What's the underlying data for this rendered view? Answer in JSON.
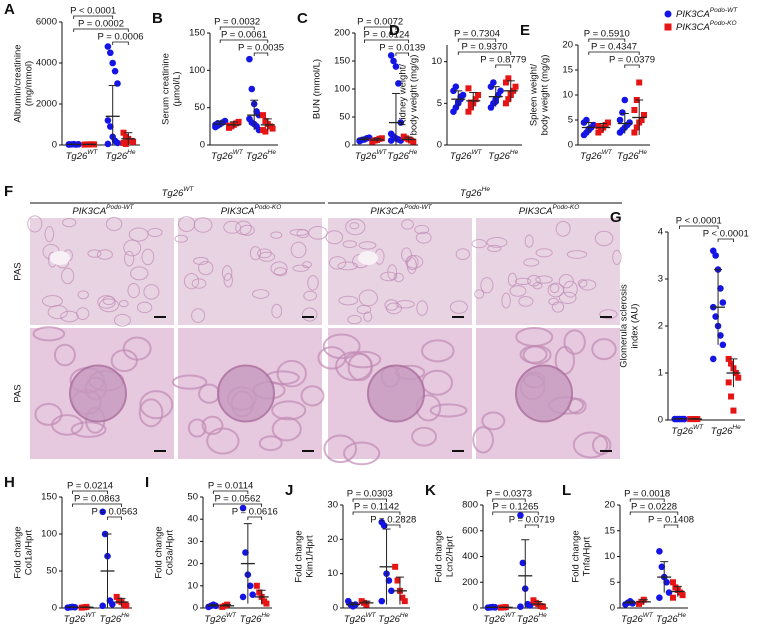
{
  "legend": [
    {
      "name": "PIK3CA",
      "sup": "Podo-WT",
      "color": "#1414e6"
    },
    {
      "name": "PIK3CA",
      "sup": "Podo-KO",
      "color": "#e61414"
    }
  ],
  "histology": {
    "panel": "F",
    "groups": [
      {
        "base": "Tg26",
        "sup": "WT"
      },
      {
        "base": "Tg26",
        "sup": "He"
      }
    ],
    "columns": [
      {
        "name": "PIK3CA",
        "sup": "Podo-WT"
      },
      {
        "name": "PIK3CA",
        "sup": "Podo-KO"
      },
      {
        "name": "PIK3CA",
        "sup": "Podo-WT"
      },
      {
        "name": "PIK3CA",
        "sup": "Podo-KO"
      }
    ],
    "rows": [
      "PAS",
      "PAS"
    ]
  },
  "chart_data": [
    {
      "type": "dot",
      "panel": "A",
      "ylabel": [
        "Albumin/creatinine",
        "(mg/mmol)"
      ],
      "ylim": [
        0,
        6000
      ],
      "yticks": [
        0,
        2000,
        4000,
        6000
      ],
      "categories": [
        {
          "base": "Tg26",
          "sup": "WT"
        },
        {
          "base": "Tg26",
          "sup": "He"
        }
      ],
      "pvalues": [
        "P < 0.0001",
        "P = 0.0002",
        "P = 0.0006"
      ],
      "series": [
        {
          "values": [
            30,
            1400
          ],
          "errors": [
            10,
            1500
          ],
          "points": [
            [
              20,
              30,
              40,
              25,
              35,
              30
            ],
            [
              4800,
              4500,
              4000,
              3600,
              3000,
              1200,
              900,
              400,
              200,
              100,
              50
            ]
          ]
        },
        {
          "values": [
            30,
            300
          ],
          "errors": [
            10,
            300
          ],
          "points": [
            [
              20,
              30,
              25,
              35,
              30
            ],
            [
              600,
              400,
              300,
              200,
              150,
              100,
              50
            ]
          ]
        }
      ]
    },
    {
      "type": "dot",
      "panel": "B",
      "ylabel": [
        "Serum creatinine",
        "(µmol/L)"
      ],
      "ylim": [
        0,
        150
      ],
      "yticks": [
        0,
        50,
        100,
        150
      ],
      "categories": [
        {
          "base": "Tg26",
          "sup": "WT"
        },
        {
          "base": "Tg26",
          "sup": "He"
        }
      ],
      "pvalues": [
        "P = 0.0032",
        "P = 0.0061",
        "P = 0.0035"
      ],
      "series": [
        {
          "values": [
            28,
            40
          ],
          "errors": [
            4,
            20
          ],
          "points": [
            [
              24,
              26,
              28,
              30,
              32,
              27,
              29
            ],
            [
              115,
              75,
              55,
              45,
              40,
              35,
              30,
              28,
              25,
              20
            ]
          ]
        },
        {
          "values": [
            27,
            27
          ],
          "errors": [
            4,
            8
          ],
          "points": [
            [
              23,
              25,
              27,
              29,
              31,
              26
            ],
            [
              40,
              32,
              28,
              25,
              22,
              20,
              18
            ]
          ]
        }
      ]
    },
    {
      "type": "dot",
      "panel": "C",
      "ylabel": [
        "BUN (mmol/L)"
      ],
      "ylim": [
        0,
        200
      ],
      "yticks": [
        0,
        50,
        100,
        150,
        200
      ],
      "categories": [
        {
          "base": "Tg26",
          "sup": "WT"
        },
        {
          "base": "Tg26",
          "sup": "He"
        }
      ],
      "pvalues": [
        "P = 0.0072",
        "P = 0.0124",
        "P = 0.0139"
      ],
      "series": [
        {
          "values": [
            10,
            40
          ],
          "errors": [
            3,
            52
          ],
          "points": [
            [
              7,
              9,
              10,
              12,
              13,
              8
            ],
            [
              160,
              150,
              140,
              110,
              40,
              20,
              15,
              12,
              10,
              8,
              8
            ]
          ]
        },
        {
          "values": [
            9,
            10
          ],
          "errors": [
            3,
            4
          ],
          "points": [
            [
              6,
              8,
              9,
              11,
              12
            ],
            [
              15,
              12,
              10,
              8,
              6
            ]
          ]
        }
      ]
    },
    {
      "type": "dot",
      "panel": "D",
      "ylabel": [
        "Kidney weight/",
        "body weight (mg/g)"
      ],
      "ylim": [
        0,
        12
      ],
      "yticks": [
        0,
        5,
        10
      ],
      "categories": [
        {
          "base": "Tg26",
          "sup": "WT"
        },
        {
          "base": "Tg26",
          "sup": "He"
        }
      ],
      "pvalues": [
        "P = 0.7304",
        "P = 0.9370",
        "P = 0.8779"
      ],
      "series": [
        {
          "values": [
            5.5,
            5.8
          ],
          "errors": [
            1,
            1.2
          ],
          "points": [
            [
              4,
              4.5,
              5,
              5.5,
              6,
              6.5,
              7,
              5.2,
              5.8
            ],
            [
              4.5,
              5,
              5.5,
              6,
              6.5,
              7,
              7.5,
              5.2
            ]
          ]
        },
        {
          "values": [
            5.3,
            6.5
          ],
          "errors": [
            1,
            1.2
          ],
          "points": [
            [
              4,
              4.5,
              5,
              5.5,
              6,
              6.8,
              5.1
            ],
            [
              5,
              5.5,
              6,
              6.5,
              7,
              7.5,
              8,
              6.2
            ]
          ]
        }
      ]
    },
    {
      "type": "dot",
      "panel": "E",
      "ylabel": [
        "Spleen weight/",
        "body weight (mg/g)"
      ],
      "ylim": [
        0,
        20
      ],
      "yticks": [
        0,
        5,
        10,
        15,
        20
      ],
      "categories": [
        {
          "base": "Tg26",
          "sup": "WT"
        },
        {
          "base": "Tg26",
          "sup": "He"
        }
      ],
      "pvalues": [
        "P = 0.5910",
        "P = 0.4347",
        "P = 0.0379"
      ],
      "series": [
        {
          "values": [
            3.5,
            4.3
          ],
          "errors": [
            1,
            2
          ],
          "points": [
            [
              2,
              2.5,
              3,
              3.5,
              4,
              4.5,
              5,
              3.2
            ],
            [
              2.5,
              3,
              3.5,
              4,
              4.5,
              5,
              6.5,
              9
            ]
          ]
        },
        {
          "values": [
            3.5,
            5.5
          ],
          "errors": [
            0.8,
            3.5
          ],
          "points": [
            [
              2.5,
              3,
              3.5,
              4,
              4.5,
              3.8
            ],
            [
              2.5,
              3.5,
              4.5,
              5,
              6,
              7,
              9,
              12.5
            ]
          ]
        }
      ]
    },
    {
      "type": "dot",
      "panel": "G",
      "ylabel": [
        "Glomerula sclerosis",
        "index (AU)"
      ],
      "ylim": [
        0,
        4
      ],
      "yticks": [
        0,
        1,
        2,
        3,
        4
      ],
      "categories": [
        {
          "base": "Tg26",
          "sup": "WT"
        },
        {
          "base": "Tg26",
          "sup": "He"
        }
      ],
      "pvalues": [
        "P < 0.0001",
        "P < 0.0001"
      ],
      "series": [
        {
          "values": [
            0.02,
            2.4
          ],
          "errors": [
            0.01,
            0.8
          ],
          "points": [
            [
              0.02,
              0.02,
              0.02,
              0.02,
              0.02
            ],
            [
              3.6,
              3.5,
              3.2,
              2.8,
              2.5,
              2.4,
              2.2,
              2,
              1.8,
              1.6,
              1.3
            ]
          ]
        },
        {
          "values": [
            0.02,
            1
          ],
          "errors": [
            0.01,
            0.3
          ],
          "points": [
            [
              0.02,
              0.02,
              0.02,
              0.02
            ],
            [
              1.3,
              1.2,
              1.1,
              1,
              0.9,
              0.8,
              0.5,
              0.2
            ]
          ]
        }
      ]
    },
    {
      "type": "dot",
      "panel": "H",
      "ylabel": [
        "Fold change",
        "Col1a/Hprt"
      ],
      "ylim": [
        0,
        150
      ],
      "yticks": [
        0,
        50,
        100,
        150
      ],
      "categories": [
        {
          "base": "Tg26",
          "sup": "WT"
        },
        {
          "base": "Tg26",
          "sup": "He"
        }
      ],
      "pvalues": [
        "P = 0.0214",
        "P = 0.0863",
        "P = 0.0563"
      ],
      "series": [
        {
          "values": [
            1,
            50
          ],
          "errors": [
            0.5,
            50
          ],
          "points": [
            [
              0.5,
              1,
              1.5,
              1
            ],
            [
              130,
              100,
              70,
              10,
              5,
              3
            ]
          ]
        },
        {
          "values": [
            1,
            8
          ],
          "errors": [
            0.5,
            5
          ],
          "points": [
            [
              0.5,
              1,
              1.5
            ],
            [
              15,
              10,
              8,
              5,
              3
            ]
          ]
        }
      ]
    },
    {
      "type": "dot",
      "panel": "I",
      "ylabel": [
        "Fold change",
        "Col3a/Hprt"
      ],
      "ylim": [
        0,
        50
      ],
      "yticks": [
        0,
        10,
        20,
        30,
        40,
        50
      ],
      "categories": [
        {
          "base": "Tg26",
          "sup": "WT"
        },
        {
          "base": "Tg26",
          "sup": "He"
        }
      ],
      "pvalues": [
        "P = 0.0114",
        "P = 0.0562",
        "P = 0.0616"
      ],
      "series": [
        {
          "values": [
            1,
            20
          ],
          "errors": [
            0.5,
            18
          ],
          "points": [
            [
              0.5,
              1,
              1.5,
              1
            ],
            [
              45,
              25,
              15,
              10,
              6,
              5
            ]
          ]
        },
        {
          "values": [
            1,
            5
          ],
          "errors": [
            0.5,
            3
          ],
          "points": [
            [
              0.5,
              1,
              1.5
            ],
            [
              10,
              7,
              5,
              3,
              2
            ]
          ]
        }
      ]
    },
    {
      "type": "dot",
      "panel": "J",
      "ylabel": [
        "Fold change",
        "Kim1/Hprt"
      ],
      "ylim": [
        0,
        30
      ],
      "yticks": [
        0,
        10,
        20,
        30
      ],
      "categories": [
        {
          "base": "Tg26",
          "sup": "WT"
        },
        {
          "base": "Tg26",
          "sup": "He"
        }
      ],
      "pvalues": [
        "P = 0.0303",
        "P = 0.1142",
        "P = 0.2828"
      ],
      "series": [
        {
          "values": [
            1,
            12
          ],
          "errors": [
            0.5,
            11
          ],
          "points": [
            [
              2,
              1,
              0.5,
              1
            ],
            [
              25,
              24,
              10,
              8,
              5,
              2
            ]
          ]
        },
        {
          "values": [
            1.5,
            5
          ],
          "errors": [
            0.5,
            4
          ],
          "points": [
            [
              2,
              1.5,
              1
            ],
            [
              12,
              8,
              5,
              3,
              2
            ]
          ]
        }
      ]
    },
    {
      "type": "dot",
      "panel": "K",
      "ylabel": [
        "Fold change",
        "Lcn2/Hprt"
      ],
      "ylim": [
        0,
        800
      ],
      "yticks": [
        0,
        200,
        400,
        600,
        800
      ],
      "categories": [
        {
          "base": "Tg26",
          "sup": "WT"
        },
        {
          "base": "Tg26",
          "sup": "He"
        }
      ],
      "pvalues": [
        "P = 0.0373",
        "P = 0.1265",
        "P = 0.0719"
      ],
      "series": [
        {
          "values": [
            5,
            250
          ],
          "errors": [
            2,
            280
          ],
          "points": [
            [
              3,
              5,
              7,
              5
            ],
            [
              720,
              350,
              150,
              30,
              20,
              10
            ]
          ]
        },
        {
          "values": [
            5,
            30
          ],
          "errors": [
            2,
            20
          ],
          "points": [
            [
              3,
              5,
              7
            ],
            [
              60,
              40,
              30,
              15,
              10
            ]
          ]
        }
      ]
    },
    {
      "type": "dot",
      "panel": "L",
      "ylabel": [
        "Fold change",
        "Tnfa/Hprt"
      ],
      "ylim": [
        0,
        20
      ],
      "yticks": [
        0,
        5,
        10,
        15,
        20
      ],
      "categories": [
        {
          "base": "Tg26",
          "sup": "WT"
        },
        {
          "base": "Tg26",
          "sup": "He"
        }
      ],
      "pvalues": [
        "P = 0.0018",
        "P = 0.0228",
        "P = 0.1408"
      ],
      "series": [
        {
          "values": [
            1,
            6
          ],
          "errors": [
            0.3,
            3
          ],
          "points": [
            [
              0.7,
              1,
              1.3,
              0.9
            ],
            [
              11,
              8,
              6,
              5,
              3,
              2
            ]
          ]
        },
        {
          "values": [
            1.2,
            3.2
          ],
          "errors": [
            0.4,
            1
          ],
          "points": [
            [
              0.8,
              1.2,
              1.6
            ],
            [
              5,
              4,
              3.5,
              3,
              2.5,
              2
            ]
          ]
        }
      ]
    }
  ]
}
